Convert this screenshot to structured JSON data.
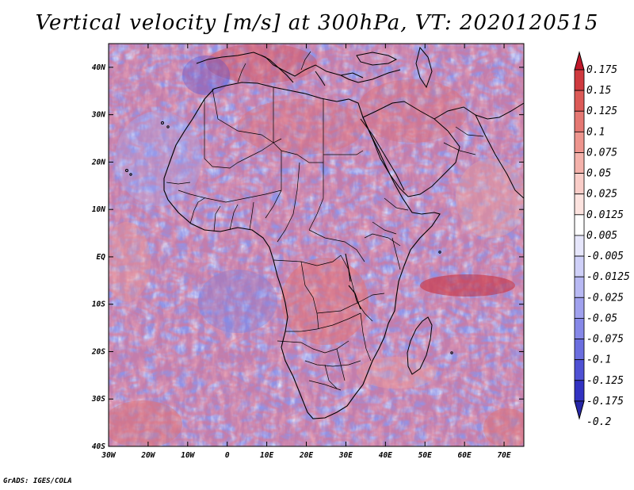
{
  "title": "Vertical velocity [m/s] at 300hPa, VT: 2020120515",
  "footer": "GrADS: IGES/COLA",
  "map": {
    "projection": "lat-lon",
    "extent": {
      "lon_min": -30,
      "lon_max": 75,
      "lat_min": -40,
      "lat_max": 45
    },
    "lon_ticks": [
      "30W",
      "20W",
      "10W",
      "0",
      "10E",
      "20E",
      "30E",
      "40E",
      "50E",
      "60E",
      "70E"
    ],
    "lat_ticks": [
      "40S",
      "30S",
      "20S",
      "10S",
      "EQ",
      "10N",
      "20N",
      "30N",
      "40N"
    ]
  },
  "colorbar": {
    "levels": [
      "0.175",
      "0.15",
      "0.125",
      "0.1",
      "0.075",
      "0.05",
      "0.025",
      "0.0125",
      "0.005",
      "-0.005",
      "-0.0125",
      "-0.025",
      "-0.05",
      "-0.075",
      "-0.1",
      "-0.125",
      "-0.175",
      "-0.2"
    ],
    "colors": [
      "#c0182a",
      "#cf3a3f",
      "#dc5a57",
      "#e57873",
      "#ee958e",
      "#f4b2ab",
      "#f9cdc8",
      "#fce3df",
      "#ffffff",
      "#e6e6fb",
      "#cfd0f8",
      "#b8b9f3",
      "#a0a1ee",
      "#8688e8",
      "#6b6edf",
      "#4f51d4",
      "#3232c2",
      "#2727a8"
    ]
  }
}
